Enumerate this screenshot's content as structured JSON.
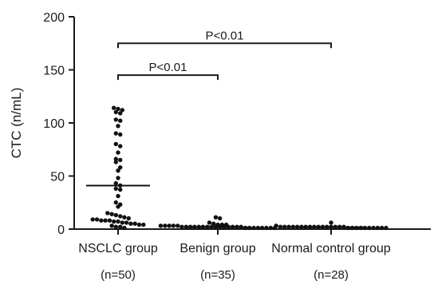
{
  "chart_data": {
    "type": "scatter",
    "ylabel": "CTC (n/mL)",
    "ylim": [
      0,
      200
    ],
    "yticks": [
      0,
      50,
      100,
      150,
      200
    ],
    "groups": [
      {
        "label": "NSCLC group",
        "n_label": "(n=50)",
        "mean": 41,
        "values": [
          113,
          112,
          111,
          109,
          108,
          102,
          101,
          96,
          89,
          88,
          79,
          77,
          71,
          65,
          64,
          62,
          57,
          54,
          47,
          42,
          40,
          37,
          36,
          30,
          24,
          22,
          20,
          14,
          13,
          12,
          11,
          10,
          9,
          8,
          8,
          7,
          7,
          7,
          6,
          6,
          5,
          5,
          4,
          4,
          3,
          3,
          2,
          1,
          1,
          0
        ]
      },
      {
        "label": "Benign group",
        "n_label": "(n=35)",
        "mean": 1,
        "values": [
          10,
          9,
          5,
          4,
          3,
          3,
          3,
          2,
          2,
          2,
          2,
          2,
          1,
          1,
          1,
          1,
          1,
          1,
          1,
          1,
          1,
          1,
          1,
          1,
          1,
          1,
          1,
          0,
          0,
          0,
          0,
          0,
          0,
          0,
          0
        ]
      },
      {
        "label": "Normal control group",
        "n_label": "(n=28)",
        "mean": 1,
        "values": [
          5,
          2,
          1,
          1,
          1,
          1,
          1,
          1,
          1,
          1,
          1,
          1,
          1,
          1,
          1,
          1,
          1,
          1,
          0,
          0,
          0,
          0,
          0,
          0,
          0,
          0,
          0,
          0
        ]
      }
    ],
    "annotations": [
      {
        "text": "P<0.01",
        "from_group": 0,
        "to_group": 1,
        "level": 145
      },
      {
        "text": "P<0.01",
        "from_group": 0,
        "to_group": 2,
        "level": 175
      }
    ]
  }
}
